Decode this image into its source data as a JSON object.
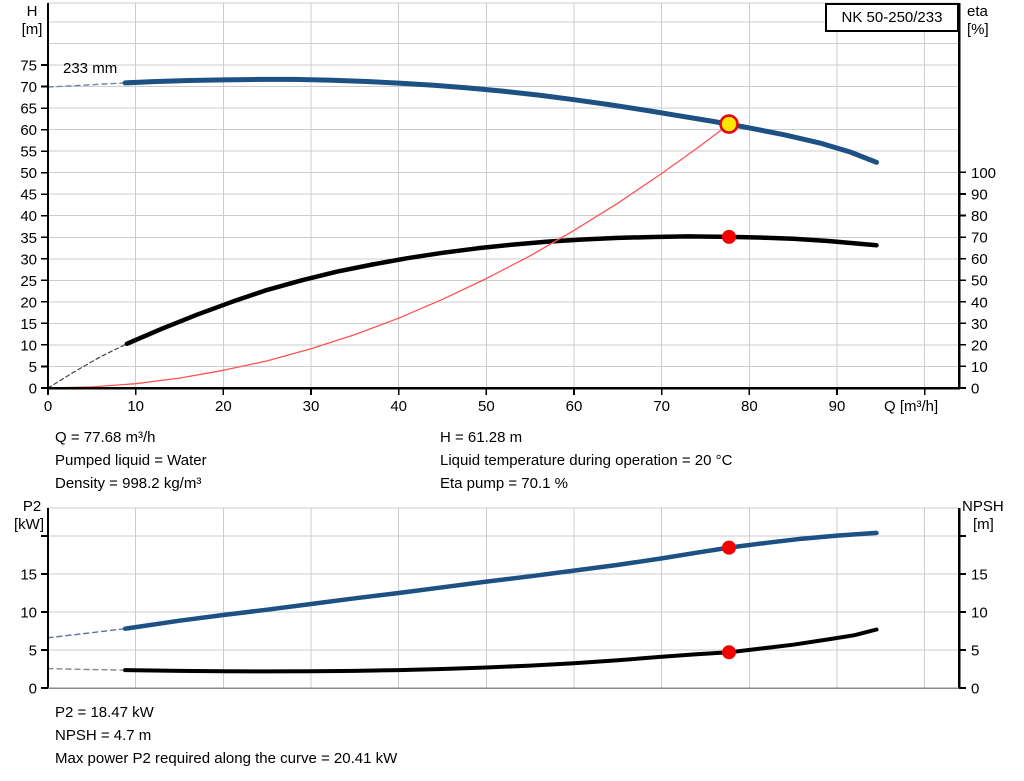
{
  "pump": {
    "model": "NK 50-250/233",
    "impeller": "233 mm"
  },
  "top_info": {
    "q": "Q = 77.68 m³/h",
    "pumped_liquid": "Pumped liquid = Water",
    "density": "Density = 998.2 kg/m³",
    "h": "H = 61.28 m",
    "temperature": "Liquid temperature during operation = 20 °C",
    "eta_pump": "Eta pump = 70.1 %"
  },
  "bottom_info": {
    "p2": "P2 = 18.47 kW",
    "npsh": "NPSH = 4.7 m",
    "max_power": "Max power P2 required along the curve = 20.41 kW"
  },
  "colors": {
    "curve_blue": "#1d5183",
    "curve_black": "#000000",
    "system_red": "#ff5252",
    "duty_yellow": "#ffe600",
    "duty_ring_red": "#e30613",
    "dot_red": "#f40000",
    "grid": "#cccccc",
    "axis": "#000000"
  },
  "chart_data": [
    {
      "type": "line",
      "title": "NK 50-250/233",
      "annotation": "233 mm",
      "xlabel": "Q [m³/h]",
      "ylabel_left": [
        "H",
        "[m]"
      ],
      "ylabel_right": [
        "eta",
        "[%]"
      ],
      "xlim": [
        0,
        104
      ],
      "ylim_left": [
        0,
        89
      ],
      "ylim_right": [
        0,
        100
      ],
      "grid": true,
      "x_ticks": [
        0,
        10,
        20,
        30,
        40,
        50,
        60,
        70,
        80,
        90
      ],
      "y_left_ticks": [
        0,
        5,
        10,
        15,
        20,
        25,
        30,
        35,
        40,
        45,
        50,
        55,
        60,
        65,
        70,
        75
      ],
      "y_right_ticks": [
        0,
        10,
        20,
        30,
        40,
        50,
        60,
        70,
        80,
        90,
        100
      ],
      "series": [
        {
          "name": "head-curve-dashed",
          "axis": "left",
          "color": "#6f87a8",
          "width": 1.4,
          "dash": "5 4",
          "points": [
            [
              0,
              69.9
            ],
            [
              3,
              70.2
            ],
            [
              6,
              70.55
            ],
            [
              8.8,
              70.85
            ]
          ]
        },
        {
          "name": "head-curve",
          "axis": "left",
          "color": "#1d5183",
          "width": 5,
          "dash": null,
          "points": [
            [
              8.8,
              70.85
            ],
            [
              12,
              71.15
            ],
            [
              16,
              71.4
            ],
            [
              20,
              71.55
            ],
            [
              24,
              71.65
            ],
            [
              28,
              71.65
            ],
            [
              32,
              71.5
            ],
            [
              36,
              71.2
            ],
            [
              40,
              70.8
            ],
            [
              44,
              70.3
            ],
            [
              48,
              69.65
            ],
            [
              52,
              68.9
            ],
            [
              56,
              68.0
            ],
            [
              60,
              66.95
            ],
            [
              64,
              65.8
            ],
            [
              68,
              64.55
            ],
            [
              72,
              63.2
            ],
            [
              75,
              62.2
            ],
            [
              77.68,
              61.28
            ],
            [
              80,
              60.4
            ],
            [
              84,
              58.8
            ],
            [
              88,
              56.9
            ],
            [
              91.5,
              54.8
            ],
            [
              94.5,
              52.4
            ]
          ]
        },
        {
          "name": "eta-curve-dashed",
          "axis": "right",
          "color": "#444444",
          "width": 1.2,
          "dash": "4 3",
          "points": [
            [
              0,
              0
            ],
            [
              3,
              7.5
            ],
            [
              6,
              14.5
            ],
            [
              9,
              20.5
            ]
          ]
        },
        {
          "name": "eta-curve",
          "axis": "right",
          "color": "#000000",
          "width": 4.5,
          "dash": null,
          "points": [
            [
              9,
              20.5
            ],
            [
              13,
              27.5
            ],
            [
              17,
              34
            ],
            [
              21,
              40
            ],
            [
              25,
              45.5
            ],
            [
              29,
              50
            ],
            [
              33,
              54
            ],
            [
              37,
              57.3
            ],
            [
              41,
              60.2
            ],
            [
              45,
              62.7
            ],
            [
              49,
              64.8
            ],
            [
              53,
              66.5
            ],
            [
              57,
              67.9
            ],
            [
              61,
              68.9
            ],
            [
              65,
              69.6
            ],
            [
              69,
              70.05
            ],
            [
              73,
              70.3
            ],
            [
              77.68,
              70.1
            ],
            [
              81,
              69.8
            ],
            [
              85,
              69.2
            ],
            [
              89,
              68.2
            ],
            [
              94.5,
              66.2
            ]
          ]
        },
        {
          "name": "system-curve",
          "axis": "left",
          "color": "#ff5252",
          "width": 1.3,
          "dash": null,
          "points": [
            [
              0,
              0
            ],
            [
              5,
              0.25
            ],
            [
              10,
              1.0
            ],
            [
              15,
              2.3
            ],
            [
              20,
              4.1
            ],
            [
              25,
              6.3
            ],
            [
              30,
              9.1
            ],
            [
              35,
              12.4
            ],
            [
              40,
              16.2
            ],
            [
              45,
              20.6
            ],
            [
              50,
              25.4
            ],
            [
              55,
              30.7
            ],
            [
              60,
              36.6
            ],
            [
              65,
              42.9
            ],
            [
              70,
              49.8
            ],
            [
              74,
              55.6
            ],
            [
              77.68,
              61.28
            ]
          ]
        }
      ],
      "markers": [
        {
          "name": "duty-point-head",
          "x": 77.68,
          "y": 61.28,
          "axis": "left",
          "r": 8.5,
          "fill": "#ffe600",
          "stroke": "#e30613",
          "sw": 2.6,
          "interactable": true
        },
        {
          "name": "duty-point-eta",
          "x": 77.68,
          "y": 70.1,
          "axis": "right",
          "r": 7,
          "fill": "#f40000",
          "stroke": "",
          "sw": 0,
          "interactable": false
        }
      ]
    },
    {
      "type": "line",
      "title": "",
      "annotation": "",
      "xlabel": "",
      "ylabel_left": [
        "P2",
        "[kW]"
      ],
      "ylabel_right": [
        "NPSH",
        "[m]"
      ],
      "xlim": [
        0,
        104
      ],
      "ylim_left": [
        0,
        23.5
      ],
      "ylim_right": [
        0,
        23.5
      ],
      "grid": true,
      "x_ticks": [],
      "y_left_ticks": [
        0,
        5,
        10,
        15
      ],
      "y_right_ticks": [
        0,
        5,
        10,
        15
      ],
      "series": [
        {
          "name": "p2-curve-dashed",
          "axis": "left",
          "color": "#56779e",
          "width": 1.4,
          "dash": "5 4",
          "points": [
            [
              0,
              6.6
            ],
            [
              4,
              7.15
            ],
            [
              8.8,
              7.8
            ]
          ]
        },
        {
          "name": "p2-curve",
          "axis": "left",
          "color": "#1d5183",
          "width": 4.5,
          "dash": null,
          "points": [
            [
              8.8,
              7.8
            ],
            [
              15,
              8.85
            ],
            [
              20,
              9.6
            ],
            [
              25,
              10.3
            ],
            [
              30,
              11.05
            ],
            [
              35,
              11.8
            ],
            [
              40,
              12.5
            ],
            [
              45,
              13.25
            ],
            [
              50,
              14.0
            ],
            [
              55,
              14.7
            ],
            [
              60,
              15.45
            ],
            [
              65,
              16.2
            ],
            [
              70,
              17.05
            ],
            [
              74,
              17.8
            ],
            [
              77.68,
              18.47
            ],
            [
              82,
              19.1
            ],
            [
              86,
              19.65
            ],
            [
              90,
              20.05
            ],
            [
              94.5,
              20.41
            ]
          ]
        },
        {
          "name": "npsh-curve-dashed",
          "axis": "right",
          "color": "#888888",
          "width": 1.4,
          "dash": "5 4",
          "points": [
            [
              0,
              2.55
            ],
            [
              4,
              2.45
            ],
            [
              8.8,
              2.35
            ]
          ]
        },
        {
          "name": "npsh-curve",
          "axis": "right",
          "color": "#000000",
          "width": 4,
          "dash": null,
          "points": [
            [
              8.8,
              2.35
            ],
            [
              15,
              2.25
            ],
            [
              20,
              2.2
            ],
            [
              25,
              2.18
            ],
            [
              30,
              2.2
            ],
            [
              35,
              2.25
            ],
            [
              40,
              2.35
            ],
            [
              45,
              2.5
            ],
            [
              50,
              2.7
            ],
            [
              55,
              2.95
            ],
            [
              60,
              3.25
            ],
            [
              65,
              3.65
            ],
            [
              70,
              4.1
            ],
            [
              74,
              4.45
            ],
            [
              77.68,
              4.7
            ],
            [
              81,
              5.15
            ],
            [
              85,
              5.7
            ],
            [
              89,
              6.4
            ],
            [
              92,
              6.95
            ],
            [
              94.5,
              7.7
            ]
          ]
        }
      ],
      "markers": [
        {
          "name": "duty-point-p2",
          "x": 77.68,
          "y": 18.47,
          "axis": "left",
          "r": 7,
          "fill": "#f40000",
          "stroke": "",
          "sw": 0,
          "interactable": false
        },
        {
          "name": "duty-point-npsh",
          "x": 77.68,
          "y": 4.7,
          "axis": "right",
          "r": 7,
          "fill": "#f40000",
          "stroke": "",
          "sw": 0,
          "interactable": false
        }
      ]
    }
  ]
}
